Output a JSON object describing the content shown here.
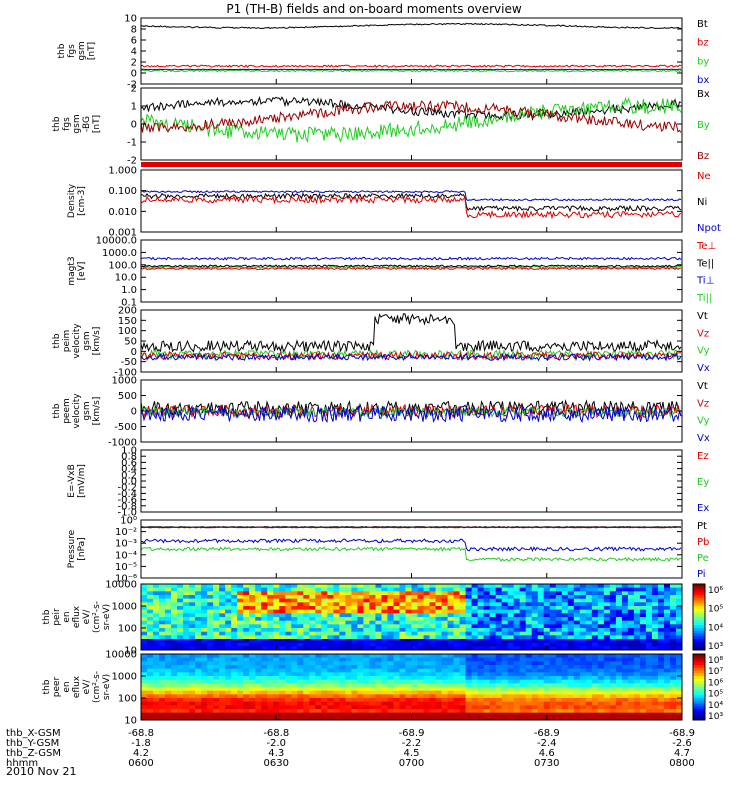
{
  "title": "P1 (TH-B) fields and on-board moments overview",
  "date": "2010 Nov 21",
  "colors": {
    "black": "#000000",
    "red": "#dd0000",
    "green": "#22cc22",
    "blue": "#0000cc",
    "dred": "#990000"
  },
  "chart_data": {
    "type": "line",
    "x_ticks": [
      "0600",
      "0630",
      "0700",
      "0730",
      "0800"
    ],
    "ephemeris": [
      {
        "label": "thb_X-GSM",
        "values": [
          "-68.8",
          "-68.8",
          "-68.9",
          "-68.9",
          "-68.9"
        ]
      },
      {
        "label": "thb_Y-GSM",
        "values": [
          "-1.8",
          "-2.0",
          "-2.2",
          "-2.4",
          "-2.6"
        ]
      },
      {
        "label": "thb_Z-GSM",
        "values": [
          "4.2",
          "4.3",
          "4.5",
          "4.6",
          "4.7"
        ]
      },
      {
        "label": "hhmm",
        "values": [
          "0600",
          "0630",
          "0700",
          "0730",
          "0800"
        ]
      }
    ],
    "panels": [
      {
        "ylabel": [
          "thb",
          "fgs",
          "gsm",
          "[nT]"
        ],
        "scale": "linear",
        "ticks": [
          "10",
          "8",
          "6",
          "4",
          "2",
          "0",
          "-2"
        ],
        "legend": [
          {
            "text": "Bt",
            "color": "black"
          },
          {
            "text": "bz",
            "color": "red"
          },
          {
            "text": "by",
            "color": "green"
          },
          {
            "text": "bx",
            "color": "blue"
          }
        ]
      },
      {
        "ylabel": [
          "thb",
          "fgs",
          "gsm",
          "-BG",
          "[nT]"
        ],
        "scale": "linear",
        "ticks": [
          "2",
          "1",
          "0",
          "-1",
          "-2"
        ],
        "legend": [
          {
            "text": "Bx",
            "color": "black"
          },
          {
            "text": "By",
            "color": "green"
          },
          {
            "text": "Bz",
            "color": "dred"
          }
        ]
      },
      {
        "ylabel": [
          "Density",
          "[cm-3]"
        ],
        "scale": "log",
        "ticks": [
          "1.000",
          "0.100",
          "0.010",
          "0.001"
        ],
        "legend": [
          {
            "text": "Ne",
            "color": "red"
          },
          {
            "text": "Ni",
            "color": "black"
          },
          {
            "text": "Npot",
            "color": "blue"
          }
        ]
      },
      {
        "ylabel": [
          "magt3",
          "[eV]"
        ],
        "scale": "log",
        "ticks": [
          "10000.0",
          "1000.0",
          "100.0",
          "10.0",
          "1.0",
          "0.1"
        ],
        "legend": [
          {
            "text": "Te⊥",
            "color": "red"
          },
          {
            "text": "Te||",
            "color": "black"
          },
          {
            "text": "Ti⊥",
            "color": "blue"
          },
          {
            "text": "Ti||",
            "color": "green"
          }
        ]
      },
      {
        "ylabel": [
          "thb",
          "peim",
          "velocity",
          "gsm",
          "[km/s]"
        ],
        "scale": "linear",
        "ticks": [
          "200",
          "150",
          "100",
          "50",
          "0",
          "-50",
          "-100"
        ],
        "legend": [
          {
            "text": "Vt",
            "color": "black"
          },
          {
            "text": "Vz",
            "color": "red"
          },
          {
            "text": "Vy",
            "color": "green"
          },
          {
            "text": "Vx",
            "color": "blue"
          }
        ]
      },
      {
        "ylabel": [
          "thb",
          "peem",
          "velocity",
          "gsm",
          "[km/s]"
        ],
        "scale": "linear",
        "ticks": [
          "1000",
          "500",
          "0",
          "-500",
          "-1000"
        ],
        "legend": [
          {
            "text": "Vt",
            "color": "black"
          },
          {
            "text": "Vz",
            "color": "red"
          },
          {
            "text": "Vy",
            "color": "green"
          },
          {
            "text": "Vx",
            "color": "blue"
          }
        ]
      },
      {
        "ylabel": [
          "E=-VxB",
          "[mV/m]"
        ],
        "scale": "linear",
        "ticks": [
          "1.0",
          "0.8",
          "0.6",
          "0.4",
          "0.2",
          "0.0",
          "-0.2",
          "-0.4",
          "-0.6",
          "-0.8",
          "-1.0"
        ],
        "legend": [
          {
            "text": "Ez",
            "color": "red"
          },
          {
            "text": "Ey",
            "color": "green"
          },
          {
            "text": "Ex",
            "color": "blue"
          }
        ]
      },
      {
        "ylabel": [
          "Pressure",
          "[nPa]"
        ],
        "scale": "log",
        "ticks": [
          "10⁰",
          "10⁻²",
          "10⁻³",
          "10⁻⁴",
          "10⁻⁵",
          "10⁻⁶"
        ],
        "legend": [
          {
            "text": "Pt",
            "color": "black"
          },
          {
            "text": "Pb",
            "color": "red"
          },
          {
            "text": "Pe",
            "color": "green"
          },
          {
            "text": "Pi",
            "color": "blue"
          }
        ]
      },
      {
        "ylabel": [
          "thb",
          "peir",
          "en",
          "eflux",
          "eV/",
          "(cm²-s-",
          "sr-eV)"
        ],
        "scale": "log",
        "ticks": [
          "10000",
          "1000",
          "100",
          "10"
        ],
        "colorbar_ticks": [
          "10⁶",
          "10⁵",
          "10⁴",
          "10³"
        ]
      },
      {
        "ylabel": [
          "thb",
          "peer",
          "en",
          "eflux",
          "eV/",
          "(cm²-s-",
          "sr-eV)"
        ],
        "scale": "log",
        "ticks": [
          "10000",
          "1000",
          "100",
          "10"
        ],
        "colorbar_ticks": [
          "10⁸",
          "10⁷",
          "10⁶",
          "10⁵",
          "10⁴",
          "10³"
        ]
      }
    ]
  }
}
